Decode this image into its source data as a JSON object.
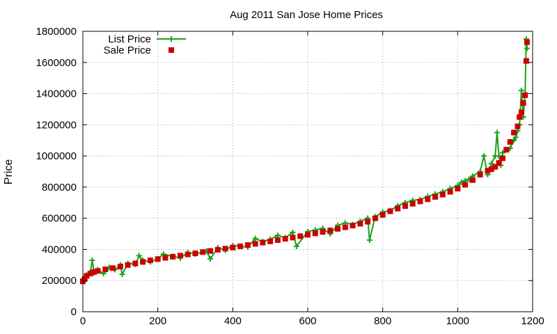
{
  "chart_data": {
    "type": "line",
    "title": "Aug 2011 San Jose Home Prices",
    "xlabel": "",
    "ylabel": "Price",
    "xlim": [
      0,
      1200
    ],
    "ylim": [
      0,
      1800000
    ],
    "xticks": [
      0,
      200,
      400,
      600,
      800,
      1000,
      1200
    ],
    "xtick_labels": [
      "0",
      "200",
      "400",
      "600",
      "800",
      "1000",
      "1200"
    ],
    "yticks": [
      0,
      200000,
      400000,
      600000,
      800000,
      1000000,
      1200000,
      1400000,
      1600000,
      1800000
    ],
    "ytick_labels": [
      "0",
      "200000",
      "400000",
      "600000",
      "800000",
      "1000000",
      "1200000",
      "1400000",
      "1600000",
      "1800000"
    ],
    "grid": true,
    "legend": "top-left",
    "series": [
      {
        "name": "List Price",
        "style": "lines+points",
        "marker": "plus",
        "color": "#1aa01a",
        "x": [
          0,
          10,
          20,
          25,
          30,
          40,
          55,
          70,
          85,
          100,
          105,
          120,
          140,
          150,
          160,
          180,
          200,
          215,
          240,
          260,
          280,
          300,
          330,
          340,
          360,
          380,
          400,
          420,
          440,
          460,
          480,
          500,
          520,
          540,
          560,
          570,
          600,
          620,
          640,
          660,
          680,
          700,
          720,
          740,
          760,
          765,
          780,
          800,
          820,
          840,
          860,
          880,
          900,
          920,
          940,
          960,
          980,
          1000,
          1010,
          1020,
          1030,
          1040,
          1060,
          1070,
          1080,
          1090,
          1100,
          1105,
          1110,
          1115,
          1120,
          1130,
          1140,
          1150,
          1155,
          1160,
          1165,
          1170,
          1175,
          1180,
          1183,
          1185
        ],
        "y": [
          210000,
          235000,
          255000,
          330000,
          250000,
          270000,
          245000,
          285000,
          270000,
          300000,
          240000,
          310000,
          305000,
          360000,
          330000,
          320000,
          340000,
          370000,
          355000,
          345000,
          380000,
          370000,
          390000,
          340000,
          410000,
          395000,
          425000,
          420000,
          415000,
          470000,
          450000,
          465000,
          490000,
          475000,
          510000,
          420000,
          515000,
          525000,
          535000,
          500000,
          555000,
          570000,
          560000,
          580000,
          600000,
          460000,
          610000,
          640000,
          650000,
          680000,
          700000,
          715000,
          720000,
          740000,
          755000,
          770000,
          790000,
          810000,
          830000,
          840000,
          850000,
          870000,
          900000,
          1000000,
          880000,
          950000,
          1000000,
          1150000,
          1000000,
          940000,
          1020000,
          1040000,
          1050000,
          1100000,
          1120000,
          1160000,
          1200000,
          1420000,
          1250000,
          1400000,
          1750000,
          1690000
        ]
      },
      {
        "name": "Sale Price",
        "style": "points",
        "marker": "filled-square",
        "color": "#cc0000",
        "x": [
          0,
          5,
          10,
          20,
          30,
          40,
          60,
          80,
          100,
          120,
          140,
          160,
          180,
          200,
          220,
          240,
          260,
          280,
          300,
          320,
          340,
          360,
          380,
          400,
          420,
          440,
          460,
          480,
          500,
          520,
          540,
          560,
          580,
          600,
          620,
          640,
          660,
          680,
          700,
          720,
          740,
          760,
          780,
          800,
          820,
          840,
          860,
          880,
          900,
          920,
          940,
          960,
          980,
          1000,
          1020,
          1040,
          1060,
          1080,
          1090,
          1100,
          1110,
          1120,
          1130,
          1140,
          1150,
          1160,
          1165,
          1170,
          1175,
          1180,
          1183,
          1185
        ],
        "y": [
          195000,
          210000,
          230000,
          245000,
          255000,
          262000,
          272000,
          280000,
          290000,
          300000,
          310000,
          320000,
          330000,
          338000,
          346000,
          353000,
          360000,
          368000,
          375000,
          383000,
          390000,
          398000,
          405000,
          412000,
          420000,
          428000,
          436000,
          444000,
          452000,
          460000,
          468000,
          476000,
          485000,
          494000,
          503000,
          512000,
          522000,
          532000,
          542000,
          553000,
          565000,
          578000,
          600000,
          622000,
          645000,
          662000,
          678000,
          693000,
          708000,
          722000,
          737000,
          752000,
          770000,
          790000,
          815000,
          845000,
          880000,
          905000,
          915000,
          930000,
          955000,
          985000,
          1040000,
          1090000,
          1150000,
          1190000,
          1250000,
          1280000,
          1340000,
          1390000,
          1610000,
          1730000
        ]
      }
    ]
  }
}
